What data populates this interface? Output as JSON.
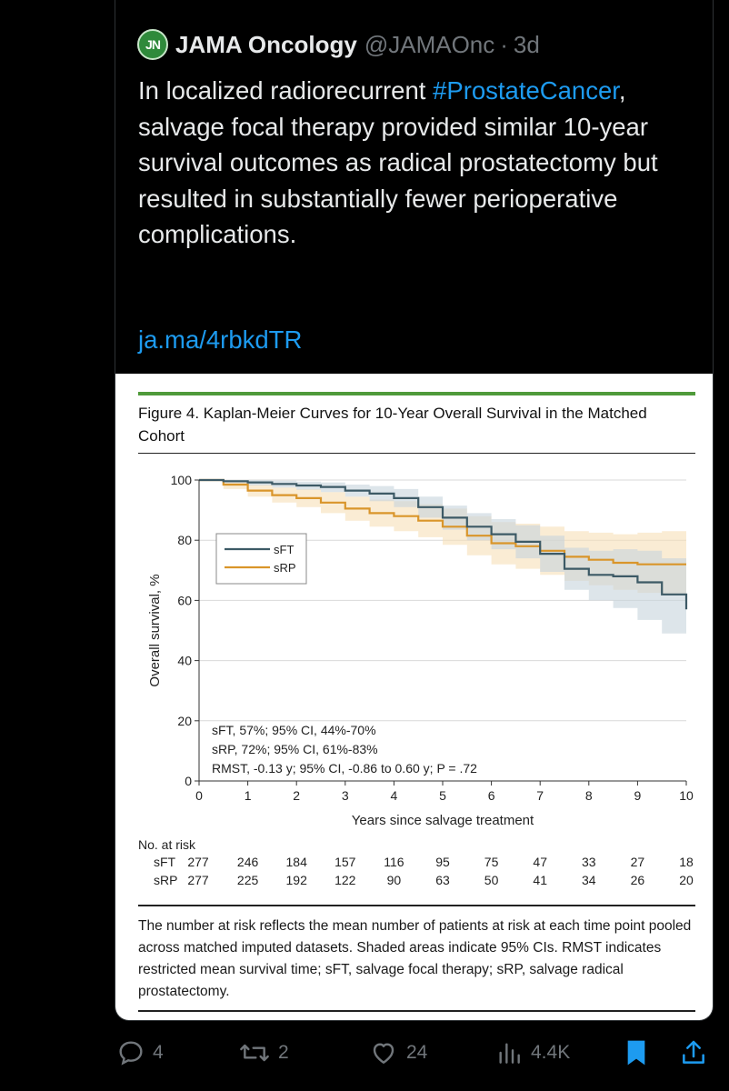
{
  "tweet": {
    "avatar_text": "JN",
    "display_name": "JAMA Oncology",
    "handle": "@JAMAOnc",
    "separator": "·",
    "time_ago": "3d",
    "text_part1": "In localized radiorecurrent ",
    "hashtag": "#ProstateCancer",
    "text_part2": ", salvage focal therapy provided similar 10-year survival outcomes as radical prostatectomy but resulted in substantially fewer perioperative complications.",
    "link": "ja.ma/4rbkdTR"
  },
  "figure": {
    "title": "Figure 4. Kaplan-Meier Curves for 10-Year Overall Survival in the Matched Cohort",
    "caption": "The number at risk reflects the mean number of patients at risk at each time point pooled across matched imputed datasets. Shaded areas indicate 95% CIs. RMST indicates restricted mean survival time; sFT, salvage focal therapy; sRP, salvage radical prostatectomy."
  },
  "chart_data": {
    "type": "line",
    "title": "Figure 4. Kaplan-Meier Curves for 10-Year Overall Survival in the Matched Cohort",
    "xlabel": "Years since salvage treatment",
    "ylabel": "Overall survival, %",
    "xlim": [
      0,
      10
    ],
    "ylim": [
      0,
      100
    ],
    "x_ticks": [
      "0",
      "1",
      "2",
      "3",
      "4",
      "5",
      "6",
      "7",
      "8",
      "9",
      "10"
    ],
    "y_ticks": [
      "0",
      "20",
      "40",
      "60",
      "80",
      "100"
    ],
    "legend_position": "upper-left",
    "series": [
      {
        "name": "sFT",
        "color": "#3d5a66",
        "ci_color": "#c7d4dc",
        "x": [
          0,
          0.5,
          1,
          1.5,
          2,
          2.5,
          3,
          3.5,
          4,
          4.5,
          5,
          5.5,
          6,
          6.5,
          7,
          7.5,
          8,
          8.5,
          9,
          9.5,
          10
        ],
        "y": [
          100,
          99.6,
          99.2,
          98.7,
          98.2,
          97.7,
          96.5,
          95.5,
          94,
          91,
          87.5,
          84.5,
          82,
          79.5,
          75.5,
          70.5,
          68.5,
          68,
          66,
          62,
          57
        ],
        "ci_low": [
          100,
          99,
          98.2,
          97.5,
          96.8,
          96,
          94.5,
          93,
          91,
          87.5,
          83.5,
          80,
          77,
          74,
          69.5,
          63.5,
          60,
          57.5,
          53.5,
          49,
          44
        ],
        "ci_high": [
          100,
          100,
          100,
          99.8,
          99.5,
          99.2,
          98.5,
          98,
          97,
          94.5,
          91.5,
          89,
          87,
          85,
          81.5,
          77.5,
          76.5,
          77,
          76.5,
          74,
          70
        ]
      },
      {
        "name": "sRP",
        "color": "#d9952a",
        "ci_color": "#f7dfb8",
        "x": [
          0,
          0.5,
          1,
          1.5,
          2,
          2.5,
          3,
          3.5,
          4,
          4.5,
          5,
          5.5,
          6,
          6.5,
          7,
          7.5,
          8,
          8.5,
          9,
          9.5,
          10
        ],
        "y": [
          100,
          98.5,
          96.5,
          95,
          94,
          92.5,
          90.5,
          89,
          88,
          86.5,
          84.5,
          81.5,
          79,
          78,
          76.5,
          74.5,
          73.5,
          72.5,
          72,
          72,
          72
        ],
        "ci_low": [
          100,
          97,
          94.5,
          92.5,
          91,
          89,
          86.5,
          84.5,
          83,
          81,
          78.5,
          75,
          72,
          70.5,
          68.5,
          66.5,
          65,
          63.5,
          62.5,
          62,
          61
        ],
        "ci_high": [
          100,
          99.8,
          98.5,
          97.5,
          97,
          96,
          94.5,
          93.5,
          93,
          92,
          90.5,
          88,
          86,
          85.5,
          84.5,
          83,
          82.5,
          82,
          82.5,
          83,
          83
        ]
      }
    ],
    "annotations": [
      "sFT, 57%; 95% CI, 44%-70%",
      "sRP, 72%; 95% CI, 61%-83%",
      "RMST, -0.13 y; 95% CI, -0.86 to 0.60 y; P = .72"
    ],
    "risk_table": {
      "header": "No. at risk",
      "rows": [
        {
          "label": "sFT",
          "values": [
            277,
            246,
            184,
            157,
            116,
            95,
            75,
            47,
            33,
            27,
            18
          ]
        },
        {
          "label": "sRP",
          "values": [
            277,
            225,
            192,
            122,
            90,
            63,
            50,
            41,
            34,
            26,
            20
          ]
        }
      ]
    }
  },
  "actions": {
    "replies": "4",
    "reposts": "2",
    "likes": "24",
    "views": "4.4K"
  }
}
